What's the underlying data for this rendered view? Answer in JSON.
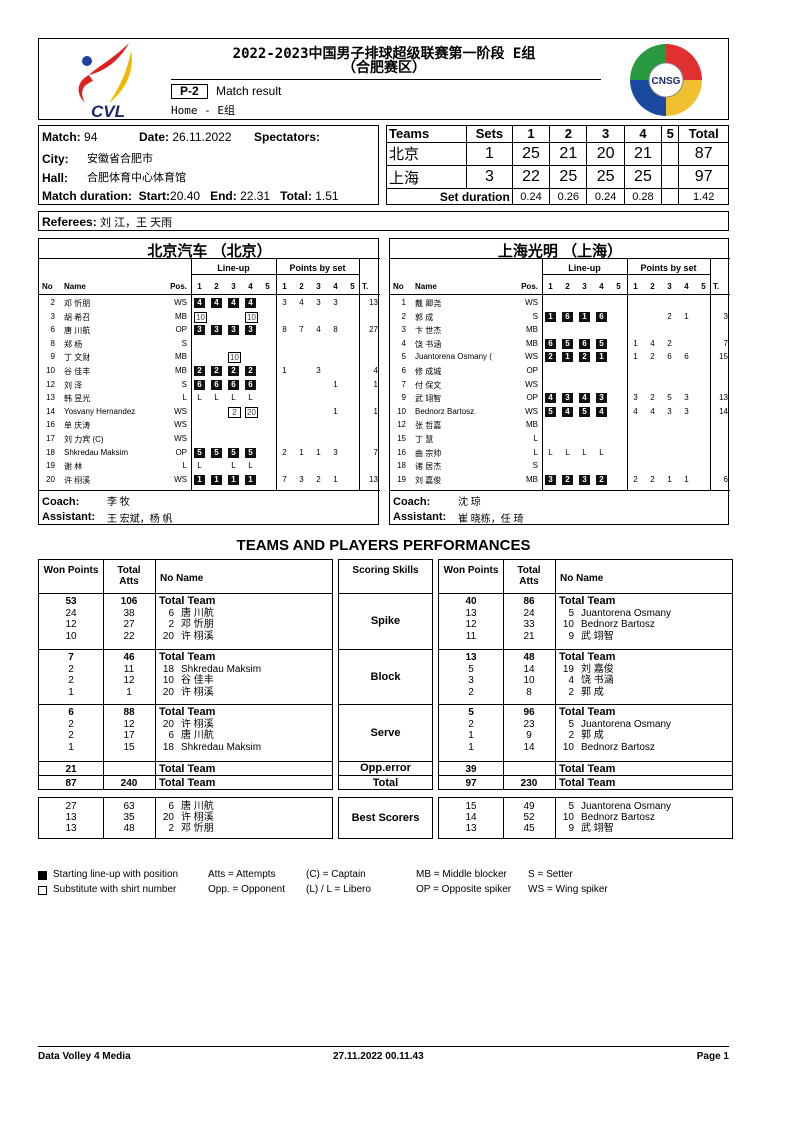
{
  "header": {
    "title": "2022-2023中国男子排球超级联赛第一阶段 E组",
    "subtitle": "（合肥赛区）",
    "code": "P-2",
    "doc_type": "Match result",
    "sub_line": "Home - E组",
    "left_logo": "CVL",
    "right_logo": "CNSG"
  },
  "match": {
    "match_label": "Match:",
    "match_no": "94",
    "date_label": "Date:",
    "date": "26.11.2022",
    "spectators_label": "Spectators:",
    "city_label": "City:",
    "city": "安徽省合肥市",
    "hall_label": "Hall:",
    "hall": "合肥体育中心体育馆",
    "duration_label": "Match duration:",
    "start_label": "Start:",
    "start": "20.40",
    "end_label": "End:",
    "end": "22.31",
    "total_label": "Total:",
    "total": "1.51"
  },
  "score": {
    "headers": [
      "Teams",
      "Sets",
      "1",
      "2",
      "3",
      "4",
      "5",
      "Total"
    ],
    "rows": [
      [
        "北京",
        "1",
        "25",
        "21",
        "20",
        "21",
        "",
        "87"
      ],
      [
        "上海",
        "3",
        "22",
        "25",
        "25",
        "25",
        "",
        "97"
      ]
    ],
    "set_duration_label": "Set duration",
    "set_durations": [
      "0.24",
      "0.26",
      "0.24",
      "0.28",
      "",
      "1.42"
    ]
  },
  "referees": {
    "label": "Referees:",
    "value": "刘 江，王 天雨"
  },
  "team_headers": {
    "lineup": "Line-up",
    "points": "Points by set",
    "no": "No",
    "name": "Name",
    "pos": "Pos.",
    "sets": [
      "1",
      "2",
      "3",
      "4",
      "5"
    ],
    "t": "T.",
    "coach": "Coach:",
    "assistant": "Assistant:"
  },
  "teams": [
    {
      "name": "北京汽车 （北京）",
      "coach": "李 牧",
      "assistant": "王 宏斌，杨 帆",
      "players": [
        {
          "no": "2",
          "name": "邓 忻朋",
          "pos": "WS",
          "lineup": [
            [
              "4",
              "start"
            ],
            [
              "4",
              "start"
            ],
            [
              "4",
              "start"
            ],
            [
              "4",
              "start"
            ],
            null
          ],
          "points": [
            "3",
            "4",
            "3",
            "3",
            ""
          ],
          "total": "13"
        },
        {
          "no": "3",
          "name": "胡 希召",
          "pos": "MB",
          "lineup": [
            [
              "10",
              "sub"
            ],
            null,
            null,
            [
              "10",
              "sub"
            ],
            null
          ],
          "points": [
            "",
            "",
            "",
            "",
            ""
          ],
          "total": ""
        },
        {
          "no": "6",
          "name": "唐 川航",
          "pos": "OP",
          "lineup": [
            [
              "3",
              "start"
            ],
            [
              "3",
              "start"
            ],
            [
              "3",
              "start"
            ],
            [
              "3",
              "start"
            ],
            null
          ],
          "points": [
            "8",
            "7",
            "4",
            "8",
            ""
          ],
          "total": "27"
        },
        {
          "no": "8",
          "name": "郑 杨",
          "pos": "S",
          "lineup": [
            null,
            null,
            null,
            null,
            null
          ],
          "points": [
            "",
            "",
            "",
            "",
            ""
          ],
          "total": ""
        },
        {
          "no": "9",
          "name": "丁 文财",
          "pos": "MB",
          "lineup": [
            null,
            null,
            [
              "10",
              "sub"
            ],
            null,
            null
          ],
          "points": [
            "",
            "",
            "",
            "",
            ""
          ],
          "total": ""
        },
        {
          "no": "10",
          "name": "谷 佳丰",
          "pos": "MB",
          "lineup": [
            [
              "2",
              "start"
            ],
            [
              "2",
              "start"
            ],
            [
              "2",
              "start"
            ],
            [
              "2",
              "start"
            ],
            null
          ],
          "points": [
            "1",
            "",
            "3",
            "",
            ""
          ],
          "total": "4"
        },
        {
          "no": "12",
          "name": "刘 泽",
          "pos": "S",
          "lineup": [
            [
              "6",
              "start"
            ],
            [
              "6",
              "start"
            ],
            [
              "6",
              "start"
            ],
            [
              "6",
              "start"
            ],
            null
          ],
          "points": [
            "",
            "",
            "",
            "1",
            ""
          ],
          "total": "1"
        },
        {
          "no": "13",
          "name": "韩 昱光",
          "pos": "L",
          "lineup": [
            [
              "L",
              "libero"
            ],
            [
              "L",
              "libero"
            ],
            [
              "L",
              "libero"
            ],
            [
              "L",
              "libero"
            ],
            null
          ],
          "points": [
            "",
            "",
            "",
            "",
            ""
          ],
          "total": ""
        },
        {
          "no": "14",
          "name": "Yosvany Hernandez",
          "pos": "WS",
          "lineup": [
            null,
            null,
            [
              "2",
              "sub"
            ],
            [
              "20",
              "sub"
            ],
            null
          ],
          "points": [
            "",
            "",
            "",
            "1",
            ""
          ],
          "total": "1"
        },
        {
          "no": "16",
          "name": "单 庆涛",
          "pos": "WS",
          "lineup": [
            null,
            null,
            null,
            null,
            null
          ],
          "points": [
            "",
            "",
            "",
            "",
            ""
          ],
          "total": ""
        },
        {
          "no": "17",
          "name": "刘 力宾 (C)",
          "pos": "WS",
          "lineup": [
            null,
            null,
            null,
            null,
            null
          ],
          "points": [
            "",
            "",
            "",
            "",
            ""
          ],
          "total": ""
        },
        {
          "no": "18",
          "name": "Shkredau Maksim",
          "pos": "OP",
          "lineup": [
            [
              "5",
              "start"
            ],
            [
              "5",
              "start"
            ],
            [
              "5",
              "start"
            ],
            [
              "5",
              "start"
            ],
            null
          ],
          "points": [
            "2",
            "1",
            "1",
            "3",
            ""
          ],
          "total": "7"
        },
        {
          "no": "19",
          "name": "谢 林",
          "pos": "L",
          "lineup": [
            [
              "L",
              "libero"
            ],
            null,
            [
              "L",
              "libero"
            ],
            [
              "L",
              "libero"
            ],
            null
          ],
          "points": [
            "",
            "",
            "",
            "",
            ""
          ],
          "total": ""
        },
        {
          "no": "20",
          "name": "许 栩溪",
          "pos": "WS",
          "lineup": [
            [
              "1",
              "start"
            ],
            [
              "1",
              "start"
            ],
            [
              "1",
              "start"
            ],
            [
              "1",
              "start"
            ],
            null
          ],
          "points": [
            "7",
            "3",
            "2",
            "1",
            ""
          ],
          "total": "13"
        }
      ]
    },
    {
      "name": "上海光明 （上海）",
      "coach": "沈 琼",
      "assistant": "崔 晓栋，任 琦",
      "players": [
        {
          "no": "1",
          "name": "戴 卿尧",
          "pos": "WS",
          "lineup": [
            null,
            null,
            null,
            null,
            null
          ],
          "points": [
            "",
            "",
            "",
            "",
            ""
          ],
          "total": ""
        },
        {
          "no": "2",
          "name": "郭 成",
          "pos": "S",
          "lineup": [
            [
              "1",
              "start"
            ],
            [
              "6",
              "start"
            ],
            [
              "1",
              "start"
            ],
            [
              "6",
              "start"
            ],
            null
          ],
          "points": [
            "",
            "",
            "2",
            "1",
            ""
          ],
          "total": "3"
        },
        {
          "no": "3",
          "name": "卞 世杰",
          "pos": "MB",
          "lineup": [
            null,
            null,
            null,
            null,
            null
          ],
          "points": [
            "",
            "",
            "",
            "",
            ""
          ],
          "total": ""
        },
        {
          "no": "4",
          "name": "饶 书涵",
          "pos": "MB",
          "lineup": [
            [
              "6",
              "start"
            ],
            [
              "5",
              "start"
            ],
            [
              "6",
              "start"
            ],
            [
              "5",
              "start"
            ],
            null
          ],
          "points": [
            "1",
            "4",
            "2",
            "",
            ""
          ],
          "total": "7"
        },
        {
          "no": "5",
          "name": "Juantorena Osmany (",
          "pos": "WS",
          "lineup": [
            [
              "2",
              "start"
            ],
            [
              "1",
              "start"
            ],
            [
              "2",
              "start"
            ],
            [
              "1",
              "start"
            ],
            null
          ],
          "points": [
            "1",
            "2",
            "6",
            "6",
            ""
          ],
          "total": "15"
        },
        {
          "no": "6",
          "name": "修 成城",
          "pos": "OP",
          "lineup": [
            null,
            null,
            null,
            null,
            null
          ],
          "points": [
            "",
            "",
            "",
            "",
            ""
          ],
          "total": ""
        },
        {
          "no": "7",
          "name": "付 保文",
          "pos": "WS",
          "lineup": [
            null,
            null,
            null,
            null,
            null
          ],
          "points": [
            "",
            "",
            "",
            "",
            ""
          ],
          "total": ""
        },
        {
          "no": "9",
          "name": "武 翊智",
          "pos": "OP",
          "lineup": [
            [
              "4",
              "start"
            ],
            [
              "3",
              "start"
            ],
            [
              "4",
              "start"
            ],
            [
              "3",
              "start"
            ],
            null
          ],
          "points": [
            "3",
            "2",
            "5",
            "3",
            ""
          ],
          "total": "13"
        },
        {
          "no": "10",
          "name": "Bednorz Bartosz",
          "pos": "WS",
          "lineup": [
            [
              "5",
              "start"
            ],
            [
              "4",
              "start"
            ],
            [
              "5",
              "start"
            ],
            [
              "4",
              "start"
            ],
            null
          ],
          "points": [
            "4",
            "4",
            "3",
            "3",
            ""
          ],
          "total": "14"
        },
        {
          "no": "12",
          "name": "张 哲嘉",
          "pos": "MB",
          "lineup": [
            null,
            null,
            null,
            null,
            null
          ],
          "points": [
            "",
            "",
            "",
            "",
            ""
          ],
          "total": ""
        },
        {
          "no": "15",
          "name": "丁 慧",
          "pos": "L",
          "lineup": [
            null,
            null,
            null,
            null,
            null
          ],
          "points": [
            "",
            "",
            "",
            "",
            ""
          ],
          "total": ""
        },
        {
          "no": "16",
          "name": "曲 宗帅",
          "pos": "L",
          "lineup": [
            [
              "L",
              "libero"
            ],
            [
              "L",
              "libero"
            ],
            [
              "L",
              "libero"
            ],
            [
              "L",
              "libero"
            ],
            null
          ],
          "points": [
            "",
            "",
            "",
            "",
            ""
          ],
          "total": ""
        },
        {
          "no": "18",
          "name": "诸 居杰",
          "pos": "S",
          "lineup": [
            null,
            null,
            null,
            null,
            null
          ],
          "points": [
            "",
            "",
            "",
            "",
            ""
          ],
          "total": ""
        },
        {
          "no": "19",
          "name": "刘 嘉俊",
          "pos": "MB",
          "lineup": [
            [
              "3",
              "start"
            ],
            [
              "2",
              "start"
            ],
            [
              "3",
              "start"
            ],
            [
              "2",
              "start"
            ],
            null
          ],
          "points": [
            "2",
            "2",
            "1",
            "1",
            ""
          ],
          "total": "6"
        }
      ]
    }
  ],
  "performance": {
    "title": "TEAMS AND PLAYERS PERFORMANCES",
    "headers": {
      "won": "Won Points",
      "atts": "Total Atts",
      "noname": "No Name",
      "skills": "Scoring Skills"
    },
    "skills": [
      "Spike",
      "Block",
      "Serve",
      "Opp.error",
      "Total",
      "Best Scorers"
    ],
    "home": [
      [
        [
          "53",
          "106",
          "",
          "Total Team"
        ],
        [
          "24",
          "38",
          "6",
          "唐 川航"
        ],
        [
          "12",
          "27",
          "2",
          "邓 忻朋"
        ],
        [
          "10",
          "22",
          "20",
          "许 栩溪"
        ]
      ],
      [
        [
          "7",
          "46",
          "",
          "Total Team"
        ],
        [
          "2",
          "11",
          "18",
          "Shkredau Maksim"
        ],
        [
          "2",
          "12",
          "10",
          "谷 佳丰"
        ],
        [
          "1",
          "1",
          "20",
          "许 栩溪"
        ]
      ],
      [
        [
          "6",
          "88",
          "",
          "Total Team"
        ],
        [
          "2",
          "12",
          "20",
          "许 栩溪"
        ],
        [
          "2",
          "17",
          "6",
          "唐 川航"
        ],
        [
          "1",
          "15",
          "18",
          "Shkredau Maksim"
        ]
      ],
      [
        [
          "21",
          "",
          "",
          "Total Team"
        ]
      ],
      [
        [
          "87",
          "240",
          "",
          "Total Team"
        ]
      ],
      [
        [
          "27",
          "63",
          "6",
          "唐 川航"
        ],
        [
          "13",
          "35",
          "20",
          "许 栩溪"
        ],
        [
          "13",
          "48",
          "2",
          "邓 忻朋"
        ]
      ]
    ],
    "away": [
      [
        [
          "40",
          "86",
          "",
          "Total Team"
        ],
        [
          "13",
          "24",
          "5",
          "Juantorena Osmany"
        ],
        [
          "12",
          "33",
          "10",
          "Bednorz Bartosz"
        ],
        [
          "11",
          "21",
          "9",
          "武 翊智"
        ]
      ],
      [
        [
          "13",
          "48",
          "",
          "Total Team"
        ],
        [
          "5",
          "14",
          "19",
          "刘 嘉俊"
        ],
        [
          "3",
          "10",
          "4",
          "饶 书涵"
        ],
        [
          "2",
          "8",
          "2",
          "郭 成"
        ]
      ],
      [
        [
          "5",
          "96",
          "",
          "Total Team"
        ],
        [
          "2",
          "23",
          "5",
          "Juantorena Osmany"
        ],
        [
          "1",
          "9",
          "2",
          "郭 成"
        ],
        [
          "1",
          "14",
          "10",
          "Bednorz Bartosz"
        ]
      ],
      [
        [
          "39",
          "",
          "",
          "Total Team"
        ]
      ],
      [
        [
          "97",
          "230",
          "",
          "Total Team"
        ]
      ],
      [
        [
          "15",
          "49",
          "5",
          "Juantorena Osmany"
        ],
        [
          "14",
          "52",
          "10",
          "Bednorz Bartosz"
        ],
        [
          "13",
          "45",
          "9",
          "武 翊智"
        ]
      ]
    ]
  },
  "legend": [
    [
      "Starting line-up with position",
      "Atts = Attempts",
      "(C) = Captain",
      "MB = Middle blocker",
      "S = Setter"
    ],
    [
      "Substitute with shirt number",
      "Opp. = Opponent",
      "(L) / L = Libero",
      "OP = Opposite spiker",
      "WS = Wing spiker"
    ]
  ],
  "footer": {
    "left": "Data Volley 4 Media",
    "center": "27.11.2022 00.11.43",
    "right": "Page 1"
  }
}
